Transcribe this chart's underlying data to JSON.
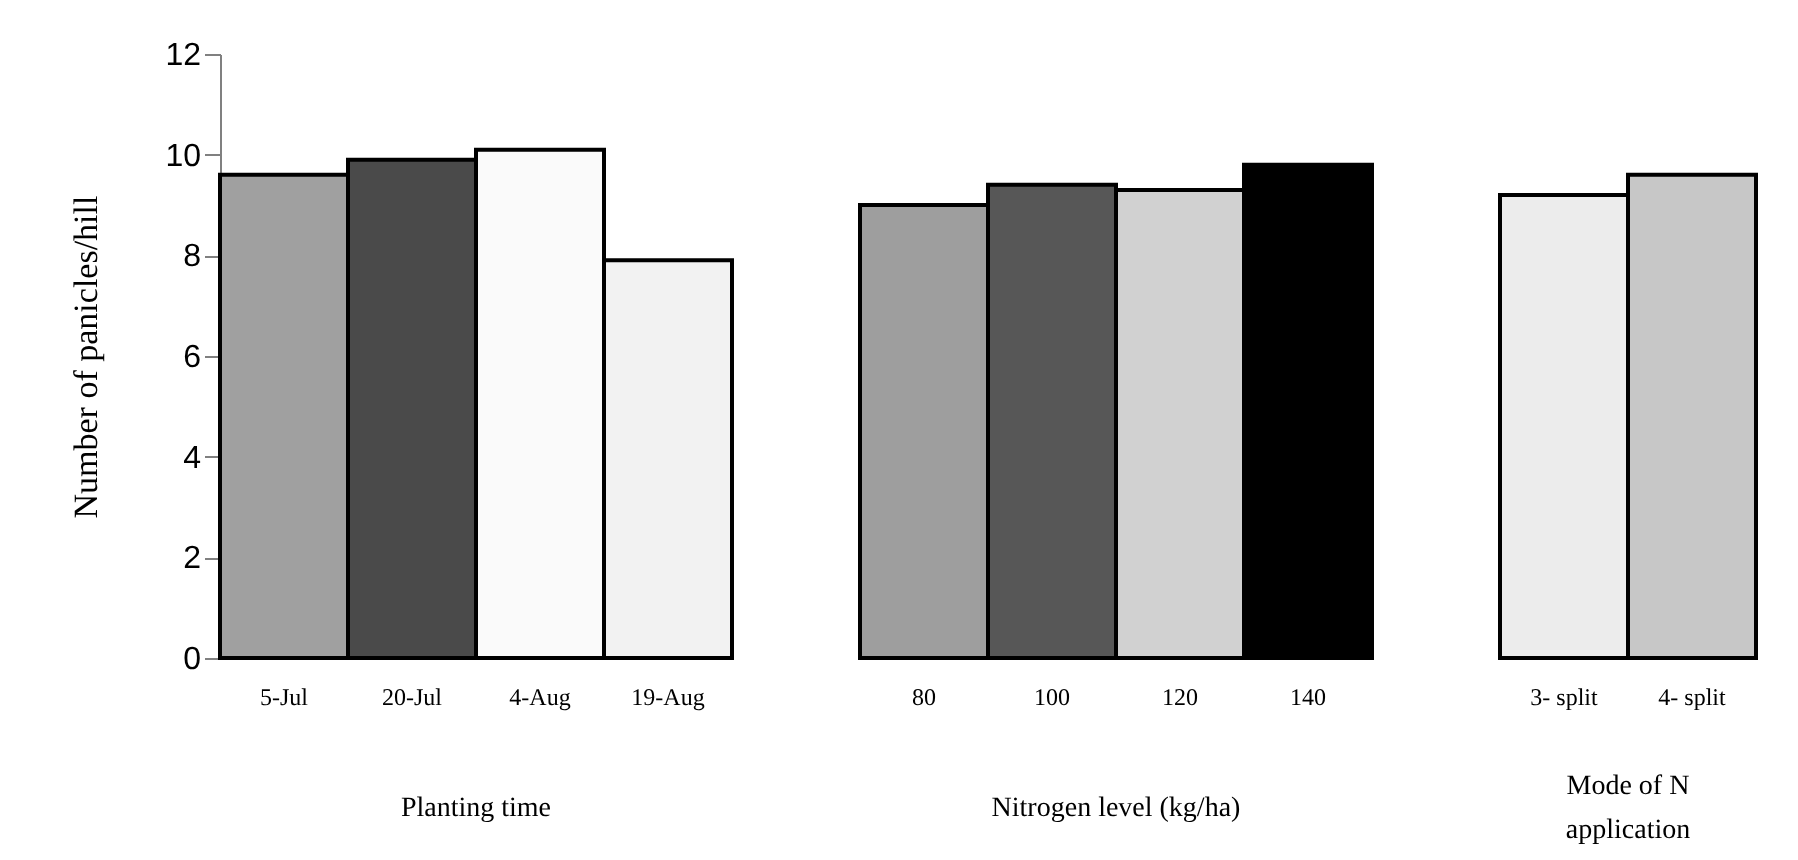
{
  "chart_data": {
    "type": "bar",
    "ylabel": "Number of panicles/hill",
    "categories": [
      "5-Jul",
      "20-Jul",
      "4-Aug",
      "19-Aug",
      null,
      "80",
      "100",
      "120",
      "140",
      null,
      "3- split",
      "4- split"
    ],
    "values": [
      9.6,
      9.9,
      10.1,
      7.9,
      null,
      9.0,
      9.4,
      9.3,
      9.8,
      null,
      9.2,
      9.6
    ],
    "colors": [
      "#a0a0a0",
      "#4a4a4a",
      "#fafafa",
      "#f2f2f2",
      null,
      "#9e9e9e",
      "#575757",
      "#d1d1d1",
      "#000000",
      null,
      "#ececec",
      "#c7c7c7"
    ],
    "ylim": [
      0,
      12
    ],
    "yticks": [
      0,
      2,
      4,
      6,
      8,
      10,
      12
    ],
    "grid": false,
    "legend": false,
    "annotations": [
      "Planting time",
      "Nitrogen level (kg/ha)",
      "Mode of N\napplication"
    ]
  }
}
